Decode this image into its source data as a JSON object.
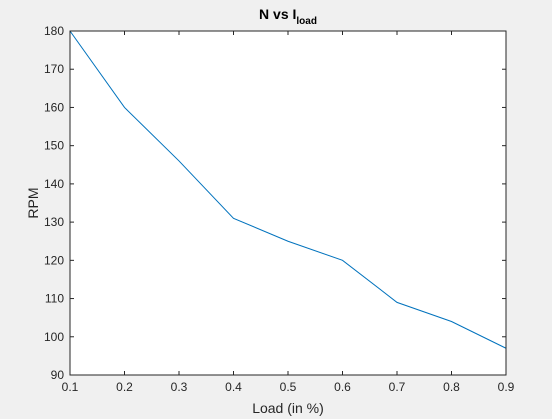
{
  "chart_data": {
    "type": "line",
    "title_main": "N vs I",
    "title_subscript": "load",
    "xlabel": "Load (in %)",
    "ylabel": "RPM",
    "xlim": [
      0.1,
      0.9
    ],
    "ylim": [
      90,
      180
    ],
    "x_ticks": [
      "0.1",
      "0.2",
      "0.3",
      "0.4",
      "0.5",
      "0.6",
      "0.7",
      "0.8",
      "0.9"
    ],
    "y_ticks": [
      "90",
      "100",
      "110",
      "120",
      "130",
      "140",
      "150",
      "160",
      "170",
      "180"
    ],
    "grid": false,
    "series": [
      {
        "x": [
          0.1,
          0.2,
          0.3,
          0.4,
          0.5,
          0.6,
          0.7,
          0.8,
          0.9
        ],
        "y": [
          180,
          160,
          146,
          131,
          125,
          120,
          109,
          104,
          97
        ],
        "color": "#0072bd"
      }
    ]
  }
}
